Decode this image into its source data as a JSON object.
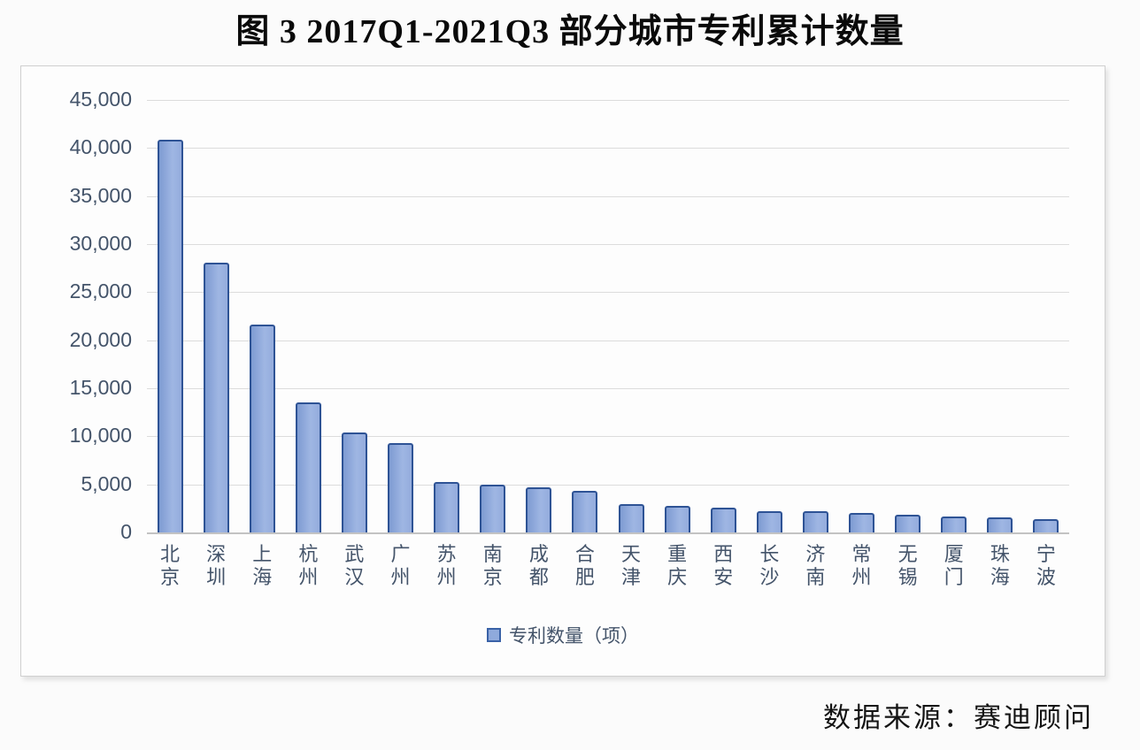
{
  "title": "图 3 2017Q1-2021Q3 部分城市专利累计数量",
  "source_note": "数据来源：赛迪顾问",
  "legend": {
    "label": "专利数量（项）"
  },
  "colors": {
    "bar_fill": "#8faadc",
    "bar_fill_gradient_start": "#7e9bd2",
    "bar_fill_gradient_end": "#9fb6e3",
    "bar_border": "#2e5395",
    "gridline": "#dcdcdc",
    "axis_text": "#44546a",
    "title_text": "#0a0a0a",
    "chart_box_border": "#cfcfcf"
  },
  "chart_data": {
    "type": "bar",
    "title": "图 3 2017Q1-2021Q3 部分城市专利累计数量",
    "series_name": "专利数量（项）",
    "categories": [
      "北京",
      "深圳",
      "上海",
      "杭州",
      "武汉",
      "广州",
      "苏州",
      "南京",
      "成都",
      "合肥",
      "天津",
      "重庆",
      "西安",
      "长沙",
      "济南",
      "常州",
      "无锡",
      "厦门",
      "珠海",
      "宁波"
    ],
    "values": [
      40900,
      28100,
      21600,
      13500,
      10400,
      9300,
      5200,
      5000,
      4650,
      4300,
      2950,
      2760,
      2600,
      2250,
      2250,
      2050,
      1870,
      1700,
      1550,
      1350
    ],
    "xlabel": "",
    "ylabel": "",
    "ylim": [
      0,
      45000
    ],
    "y_ticks": [
      0,
      5000,
      10000,
      15000,
      20000,
      25000,
      30000,
      35000,
      40000,
      45000
    ],
    "y_tick_labels": [
      "0",
      "5,000",
      "10,000",
      "15,000",
      "20,000",
      "25,000",
      "30,000",
      "35,000",
      "40,000",
      "45,000"
    ],
    "grid": true,
    "legend_position": "bottom"
  }
}
